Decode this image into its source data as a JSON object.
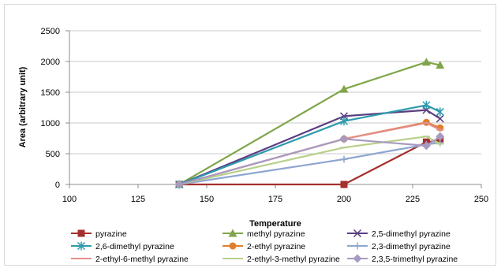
{
  "chart_data": {
    "type": "line",
    "title": "",
    "xlabel": "Temperature",
    "ylabel": "Area (arbitrary unit)",
    "xlim": [
      100,
      250
    ],
    "ylim": [
      0,
      2500
    ],
    "x_ticks": [
      "100",
      "125",
      "150",
      "175",
      "200",
      "225",
      "250"
    ],
    "y_ticks": [
      "0",
      "500",
      "1000",
      "1500",
      "2000",
      "2500"
    ],
    "grid": "horizontal",
    "legend_position": "bottom",
    "series": [
      {
        "name": "pyrazine",
        "color": "#a4302d",
        "marker": "square",
        "points": [
          [
            140,
            0
          ],
          [
            200,
            0
          ],
          [
            230,
            690
          ],
          [
            235,
            710
          ]
        ]
      },
      {
        "name": "methyl pyrazine",
        "color": "#7fa548",
        "marker": "triangle",
        "points": [
          [
            140,
            0
          ],
          [
            200,
            1550
          ],
          [
            230,
            1990
          ],
          [
            235,
            1940
          ]
        ]
      },
      {
        "name": "2,5-dimethyl pyrazine",
        "color": "#5b3f82",
        "marker": "x",
        "points": [
          [
            140,
            0
          ],
          [
            200,
            1110
          ],
          [
            230,
            1210
          ],
          [
            235,
            1070
          ]
        ]
      },
      {
        "name": "2,6-dimethyl pyrazine",
        "color": "#2e9aad",
        "marker": "star",
        "points": [
          [
            140,
            0
          ],
          [
            200,
            1030
          ],
          [
            230,
            1290
          ],
          [
            235,
            1180
          ]
        ]
      },
      {
        "name": "2-ethyl pyrazine",
        "color": "#e07e2c",
        "marker": "circle",
        "points": [
          [
            140,
            0
          ],
          [
            200,
            740
          ],
          [
            230,
            1010
          ],
          [
            235,
            920
          ]
        ]
      },
      {
        "name": "2,3-dimethyl pyrazine",
        "color": "#8ea6d1",
        "marker": "plus",
        "points": [
          [
            140,
            0
          ],
          [
            200,
            410
          ],
          [
            230,
            650
          ],
          [
            235,
            680
          ]
        ]
      },
      {
        "name": "2-ethyl-6-methyl pyrazine",
        "color": "#e38d8a",
        "marker": "dash",
        "points": [
          [
            140,
            0
          ],
          [
            200,
            740
          ],
          [
            230,
            1000
          ],
          [
            235,
            890
          ]
        ]
      },
      {
        "name": "2-ethyl-3-methyl pyrazine",
        "color": "#b8d08a",
        "marker": "dash",
        "points": [
          [
            140,
            0
          ],
          [
            200,
            600
          ],
          [
            230,
            780
          ],
          [
            235,
            660
          ]
        ]
      },
      {
        "name": "2,3,5-trimethyl pyrazine",
        "color": "#a79ac2",
        "marker": "diamond",
        "points": [
          [
            140,
            0
          ],
          [
            200,
            740
          ],
          [
            230,
            630
          ],
          [
            235,
            780
          ]
        ]
      }
    ]
  }
}
